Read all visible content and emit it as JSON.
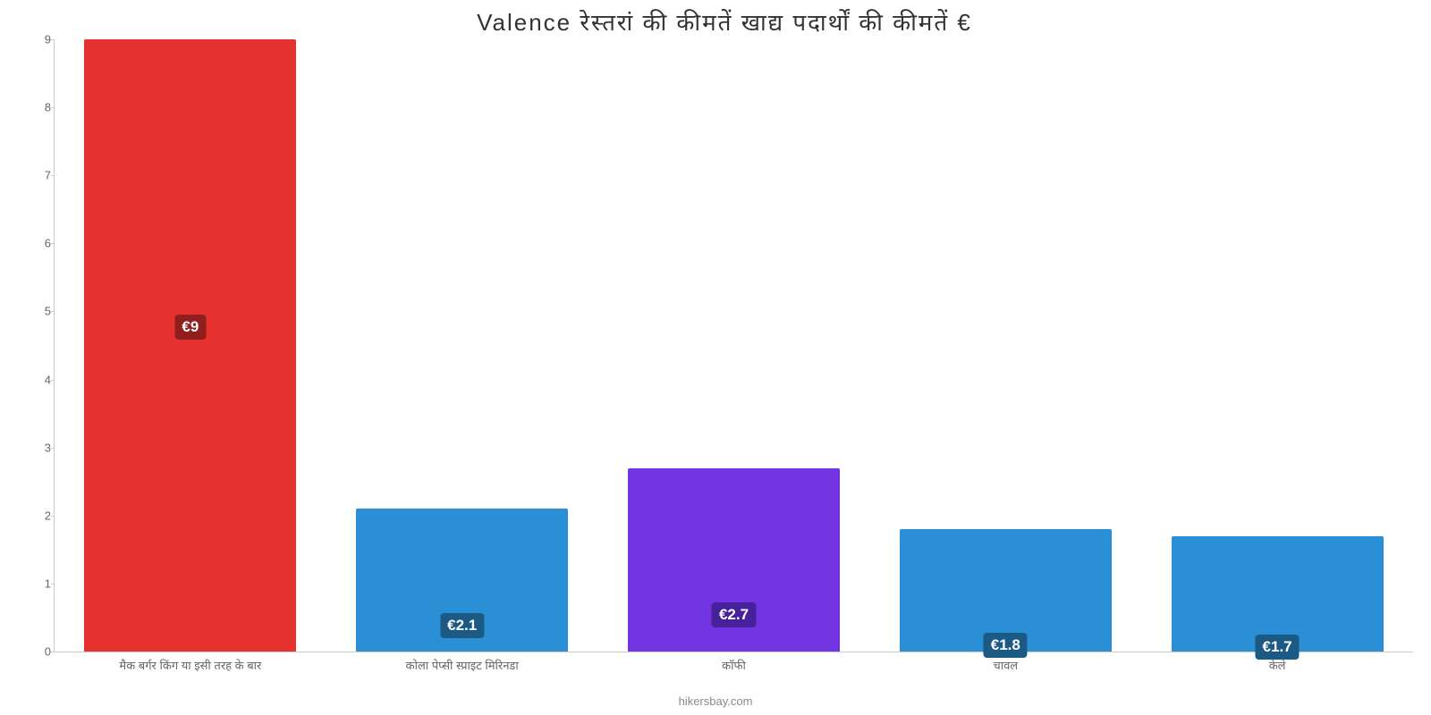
{
  "chart": {
    "type": "bar",
    "title": "Valence रेस्तरां    की    कीमतें    खाद्य    पदार्थों    की    कीमतें    €",
    "title_fontsize": 26,
    "title_color": "#333333",
    "background_color": "#ffffff",
    "axis_color": "#cccccc",
    "ylim": [
      0,
      9
    ],
    "ytick_step": 1,
    "yticks": [
      0,
      1,
      2,
      3,
      4,
      5,
      6,
      7,
      8,
      9
    ],
    "ytick_fontsize": 13,
    "ytick_color": "#666666",
    "bar_width_ratio": 0.78,
    "group_gap_ratio": 0.22,
    "categories": [
      "मैक बर्गर किंग या इसी तरह के बार",
      "कोला पेप्सी स्प्राइट मिरिनडा",
      "कॉफी",
      "चावल",
      "केले"
    ],
    "values": [
      9,
      2.1,
      2.7,
      1.8,
      1.7
    ],
    "value_labels": [
      "€9",
      "€2.1",
      "€2.7",
      "€1.8",
      "€1.7"
    ],
    "bar_colors": [
      "#e6322f",
      "#2a8fd4",
      "#7234e0",
      "#2a8fd4",
      "#2a8fd4"
    ],
    "label_bg_colors": [
      "#8f1e1d",
      "#1b5a85",
      "#47209b",
      "#1b5a85",
      "#1b5a85"
    ],
    "label_text_color": "#ffffff",
    "label_fontsize": 17,
    "xlabel_fontsize": 13,
    "xlabel_color": "#666666",
    "attribution": "hikersbay.com",
    "attribution_color": "#888888",
    "attribution_fontsize": 13,
    "label_positions_pct": [
      45,
      73,
      73,
      85,
      85
    ]
  }
}
